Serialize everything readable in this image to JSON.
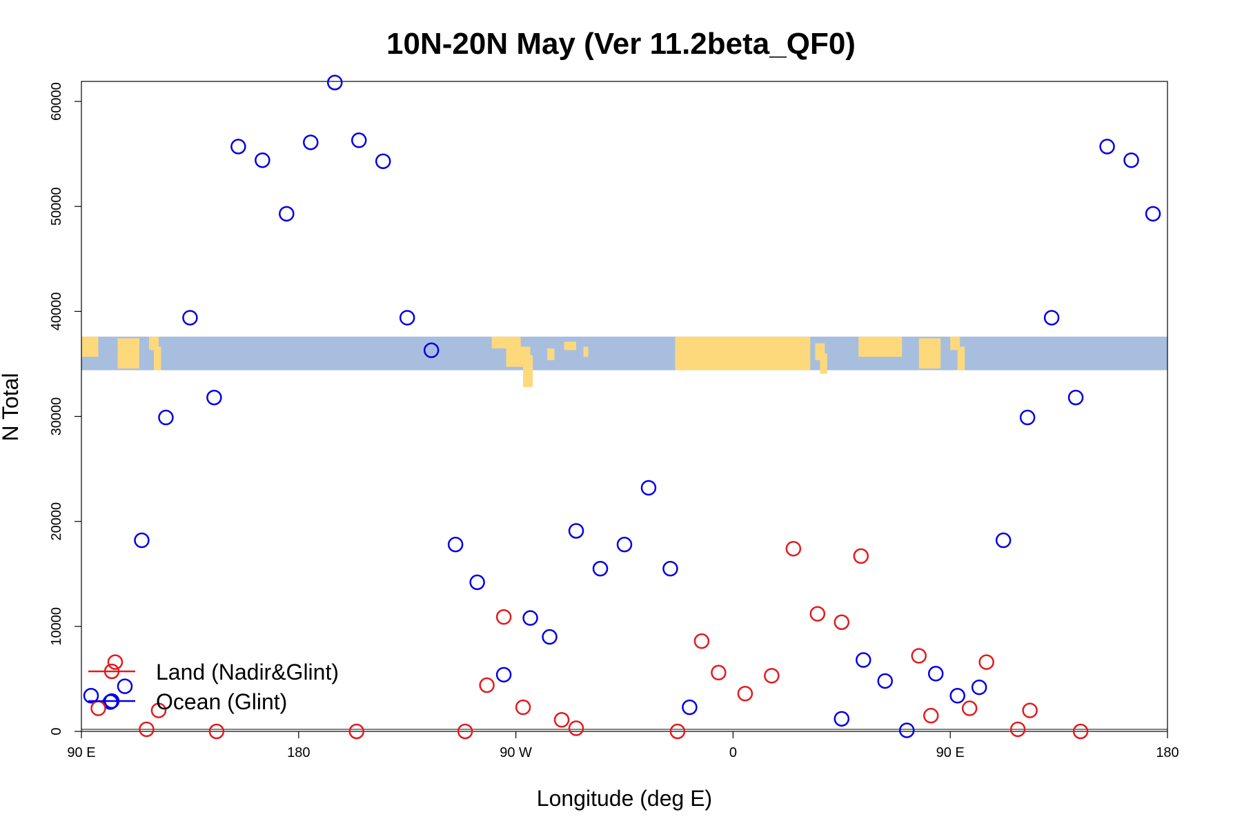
{
  "chart_data": {
    "type": "scatter",
    "title": "10N-20N May (Ver 11.2beta_QF0)",
    "xlabel": "Longitude (deg E)",
    "ylabel": "N Total",
    "xlim": [
      0,
      450
    ],
    "ylim": [
      0,
      62000
    ],
    "x_ticks": [
      {
        "value": 0,
        "label": "90 E"
      },
      {
        "value": 90,
        "label": "180"
      },
      {
        "value": 180,
        "label": "90 W"
      },
      {
        "value": 270,
        "label": "0"
      },
      {
        "value": 360,
        "label": "90 E"
      },
      {
        "value": 450,
        "label": "180"
      }
    ],
    "y_ticks": [
      {
        "value": 0,
        "label": "0"
      },
      {
        "value": 10000,
        "label": "10000"
      },
      {
        "value": 20000,
        "label": "20000"
      },
      {
        "value": 30000,
        "label": "30000"
      },
      {
        "value": 40000,
        "label": "40000"
      },
      {
        "value": 50000,
        "label": "50000"
      },
      {
        "value": 60000,
        "label": "60000"
      }
    ],
    "reference_line_y": 200,
    "map_strip": {
      "latitude_range": "10N-20N",
      "y_range": [
        34400,
        37600
      ],
      "ocean_color": "#a7bedf",
      "land_color": "#fdd97c"
    },
    "legend": {
      "position": "bottom-left",
      "entries": [
        {
          "label": "Land (Nadir&Glint)",
          "color": "#e31a1c"
        },
        {
          "label": "Ocean (Glint)",
          "color": "#0000e6"
        }
      ]
    },
    "series": [
      {
        "name": "Ocean (Glint)",
        "color": "#0000e6",
        "points": [
          [
            4,
            3400
          ],
          [
            12,
            2800
          ],
          [
            18,
            4300
          ],
          [
            25,
            18200
          ],
          [
            35,
            29900
          ],
          [
            45,
            39400
          ],
          [
            55,
            31800
          ],
          [
            65,
            55700
          ],
          [
            75,
            54400
          ],
          [
            85,
            49300
          ],
          [
            95,
            56100
          ],
          [
            105,
            61800
          ],
          [
            115,
            56300
          ],
          [
            125,
            54300
          ],
          [
            135,
            39400
          ],
          [
            145,
            36300
          ],
          [
            155,
            17800
          ],
          [
            164,
            14200
          ],
          [
            175,
            5400
          ],
          [
            186,
            10800
          ],
          [
            194,
            9000
          ],
          [
            205,
            19100
          ],
          [
            215,
            15500
          ],
          [
            225,
            17800
          ],
          [
            235,
            23200
          ],
          [
            244,
            15500
          ],
          [
            252,
            2300
          ],
          [
            315,
            1200
          ],
          [
            324,
            6800
          ],
          [
            333,
            4800
          ],
          [
            342,
            100
          ],
          [
            354,
            5500
          ],
          [
            363,
            3400
          ],
          [
            372,
            4200
          ],
          [
            382,
            18200
          ],
          [
            392,
            29900
          ],
          [
            402,
            39400
          ],
          [
            412,
            31800
          ],
          [
            425,
            55700
          ],
          [
            435,
            54400
          ],
          [
            444,
            49300
          ]
        ]
      },
      {
        "name": "Land (Nadir&Glint)",
        "color": "#e31a1c",
        "points": [
          [
            7,
            2200
          ],
          [
            14,
            6600
          ],
          [
            27,
            200
          ],
          [
            32,
            2000
          ],
          [
            56,
            0
          ],
          [
            114,
            0
          ],
          [
            159,
            0
          ],
          [
            168,
            4400
          ],
          [
            175,
            10900
          ],
          [
            183,
            2300
          ],
          [
            199,
            1100
          ],
          [
            205,
            300
          ],
          [
            247,
            0
          ],
          [
            257,
            8600
          ],
          [
            264,
            5600
          ],
          [
            275,
            3600
          ],
          [
            286,
            5300
          ],
          [
            295,
            17400
          ],
          [
            305,
            11200
          ],
          [
            315,
            10400
          ],
          [
            323,
            16700
          ],
          [
            347,
            7200
          ],
          [
            352,
            1500
          ],
          [
            368,
            2200
          ],
          [
            375,
            6600
          ],
          [
            388,
            200
          ],
          [
            393,
            2000
          ],
          [
            414,
            0
          ]
        ]
      }
    ]
  }
}
